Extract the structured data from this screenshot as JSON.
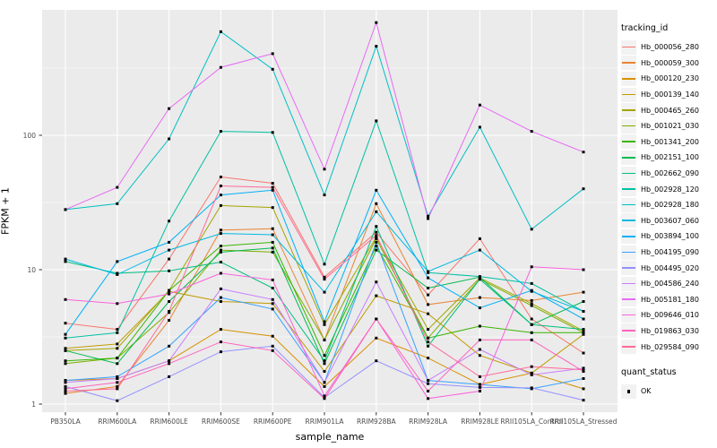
{
  "figure": {
    "background": "#FFFFFF",
    "panel_background": "#EBEBEB",
    "grid_color": "#FFFFFF",
    "tick_mark_color": "#333333",
    "tick_label_color": "#4D4D4D"
  },
  "axes": {
    "x_title": "sample_name",
    "y_title": "FPKM + 1",
    "y_tick_labels": [
      "1",
      "10",
      "100"
    ],
    "y_tick_values": [
      1,
      10,
      100
    ]
  },
  "legend": {
    "tracking_title": "tracking_id",
    "quant_title": "quant_status",
    "quant_label": "OK"
  },
  "chart_data": {
    "type": "line",
    "title": "",
    "xlabel": "sample_name",
    "ylabel": "FPKM + 1",
    "yscale": "log10",
    "ylim": [
      1,
      1000
    ],
    "grid": true,
    "legend_position": "right",
    "point_marker": "black-square",
    "x_categories": [
      "PB350LA",
      "RRIM600LA",
      "RRIM600LE",
      "RRIM600SE",
      "RRIM600PE",
      "RRIM901LA",
      "RRIM928BA",
      "RRIM928LA",
      "RRIM928LE",
      "RRII105LA_Control",
      "RRII105LA_Stressed"
    ],
    "series": [
      {
        "name": "Hb_000056_280",
        "color": "#F8766D",
        "values": [
          4.0,
          3.6,
          12,
          49,
          44,
          8.8,
          19,
          6.5,
          17,
          4.3,
          2.4
        ]
      },
      {
        "name": "Hb_000059_300",
        "color": "#EA8331",
        "values": [
          1.2,
          1.35,
          4.2,
          19.7,
          20.2,
          3.0,
          31,
          5.5,
          6.2,
          5.9,
          6.8
        ]
      },
      {
        "name": "Hb_000120_230",
        "color": "#D89000",
        "values": [
          1.5,
          1.55,
          2.1,
          3.6,
          3.2,
          1.35,
          3.1,
          2.2,
          1.4,
          1.7,
          1.3
        ]
      },
      {
        "name": "Hb_000139_140",
        "color": "#C09B00",
        "values": [
          2.6,
          2.8,
          6.9,
          5.8,
          5.6,
          1.75,
          6.4,
          4.7,
          2.3,
          1.7,
          3.3
        ]
      },
      {
        "name": "Hb_000465_260",
        "color": "#A3A500",
        "values": [
          2.5,
          2.6,
          7.0,
          30,
          29,
          3.9,
          17.5,
          3.6,
          8.7,
          5.6,
          3.5
        ]
      },
      {
        "name": "Hb_001021_030",
        "color": "#7CAE00",
        "values": [
          2.0,
          2.2,
          4.8,
          14,
          13.5,
          3.0,
          17,
          3.1,
          8.5,
          5.4,
          3.4
        ]
      },
      {
        "name": "Hb_001341_200",
        "color": "#39B600",
        "values": [
          2.1,
          2.2,
          7.0,
          15,
          16,
          2.3,
          15,
          3.1,
          3.8,
          3.4,
          3.4
        ]
      },
      {
        "name": "Hb_002151_100",
        "color": "#00BB4E",
        "values": [
          2.5,
          2.0,
          5.8,
          13.5,
          14.5,
          2.0,
          14,
          7.3,
          8.8,
          3.9,
          5.8
        ]
      },
      {
        "name": "Hb_002662_090",
        "color": "#00BF7D",
        "values": [
          11.5,
          9.4,
          9.8,
          11.4,
          7.3,
          2.1,
          21,
          2.7,
          8.5,
          3.9,
          3.6
        ]
      },
      {
        "name": "Hb_002928_120",
        "color": "#00C1A3",
        "values": [
          3.1,
          3.4,
          23,
          107,
          105,
          11,
          128,
          9.5,
          8.9,
          7.9,
          4.9
        ]
      },
      {
        "name": "Hb_002928_180",
        "color": "#00BFC4",
        "values": [
          28,
          31,
          94,
          590,
          310,
          36,
          460,
          25,
          115,
          20,
          40
        ]
      },
      {
        "name": "Hb_003607_060",
        "color": "#00BAE0",
        "values": [
          12,
          9.2,
          14,
          18.6,
          18.2,
          6.8,
          27,
          9.7,
          14,
          6.9,
          4.9
        ]
      },
      {
        "name": "Hb_003894_100",
        "color": "#00B0F6",
        "values": [
          3.3,
          11.5,
          16,
          36,
          39,
          4.1,
          39,
          8.7,
          5.2,
          7.0,
          4.3
        ]
      },
      {
        "name": "Hb_004195_090",
        "color": "#35A2FF",
        "values": [
          1.5,
          1.6,
          2.7,
          6.2,
          5.1,
          1.45,
          16,
          1.5,
          1.4,
          1.3,
          1.55
        ]
      },
      {
        "name": "Hb_004495_020",
        "color": "#9590FF",
        "values": [
          1.35,
          1.06,
          1.6,
          2.45,
          2.7,
          1.12,
          2.1,
          1.42,
          1.33,
          1.32,
          1.07
        ]
      },
      {
        "name": "Hb_004586_240",
        "color": "#C77CFF",
        "values": [
          1.45,
          1.55,
          2.1,
          7.2,
          6.0,
          1.45,
          8.1,
          1.5,
          2.55,
          1.65,
          1.85
        ]
      },
      {
        "name": "Hb_005181_180",
        "color": "#E76BF3",
        "values": [
          28,
          41,
          158,
          320,
          405,
          56,
          690,
          24,
          168,
          107,
          75
        ]
      },
      {
        "name": "Hb_009646_010",
        "color": "#FA62DB",
        "values": [
          6.0,
          5.6,
          6.6,
          9.4,
          8.4,
          1.15,
          4.3,
          1.1,
          1.25,
          10.5,
          10
        ]
      },
      {
        "name": "Hb_019863_030",
        "color": "#FF62BC",
        "values": [
          1.3,
          1.45,
          2.0,
          2.9,
          2.5,
          1.1,
          4.3,
          1.25,
          3.0,
          3.0,
          1.75
        ]
      },
      {
        "name": "Hb_029584_090",
        "color": "#FF6A98",
        "values": [
          1.25,
          1.3,
          4.9,
          42,
          41,
          8.5,
          18,
          2.9,
          1.6,
          1.9,
          1.8
        ]
      }
    ]
  }
}
